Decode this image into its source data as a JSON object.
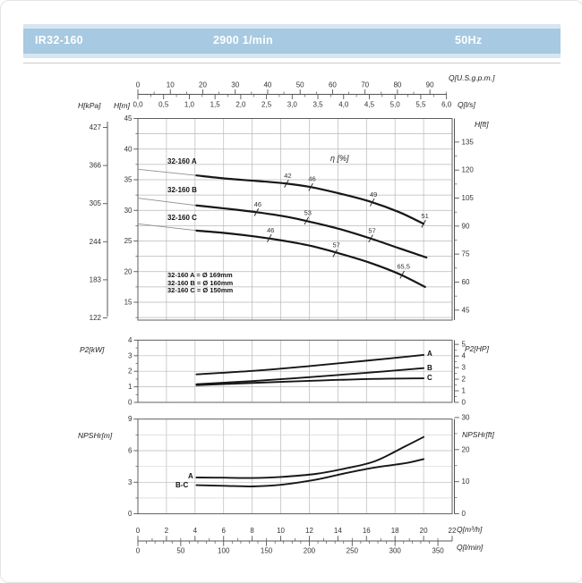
{
  "header": {
    "model": "IR32-160",
    "speed": "2900 1/min",
    "frequency": "50Hz"
  },
  "axis_titles": {
    "kpa": "H[kPa]",
    "hm": "H[m]",
    "gpm": "Q[U.S.g.p.m.]",
    "ls": "Q[l/s]",
    "hft": "H[ft]",
    "p2kw": "P2[kW]",
    "p2hp": "P2[HP]",
    "npshm": "NPSHr[m]",
    "npshft": "NPSHr[ft]",
    "qm3h": "Q[m³/h]",
    "qlmin": "Q[l/min]"
  },
  "axes": {
    "gpm_ticks": [
      0,
      10,
      20,
      30,
      40,
      50,
      60,
      70,
      80,
      90
    ],
    "ls_ticks": [
      {
        "v": 0,
        "label": "0,0"
      },
      {
        "v": 0.5,
        "label": "0,5"
      },
      {
        "v": 1,
        "label": "1,0"
      },
      {
        "v": 1.5,
        "label": "1,5"
      },
      {
        "v": 2,
        "label": "2,0"
      },
      {
        "v": 2.5,
        "label": "2,5"
      },
      {
        "v": 3,
        "label": "3,0"
      },
      {
        "v": 3.5,
        "label": "3,5"
      },
      {
        "v": 4,
        "label": "4,0"
      },
      {
        "v": 4.5,
        "label": "4,5"
      },
      {
        "v": 5,
        "label": "5,0"
      },
      {
        "v": 5.5,
        "label": "5,5"
      },
      {
        "v": 6,
        "label": "6,0"
      }
    ],
    "kpa_ticks": [
      427,
      366,
      305,
      244,
      183,
      122
    ],
    "hm_ticks": [
      45,
      40,
      35,
      30,
      25,
      20,
      15
    ],
    "hft_ticks": [
      135,
      120,
      105,
      90,
      75,
      60,
      45
    ],
    "p2kw_ticks": [
      0,
      1,
      2,
      3,
      4
    ],
    "p2hp_ticks": [
      0,
      1,
      2,
      3,
      4,
      5
    ],
    "npshm_ticks": [
      0,
      3,
      6,
      9
    ],
    "npshft_ticks": [
      0,
      10,
      20,
      30
    ],
    "m3h_ticks": [
      0,
      2,
      4,
      6,
      8,
      10,
      12,
      14,
      16,
      18,
      20,
      22
    ],
    "lmin_ticks": [
      0,
      50,
      100,
      150,
      200,
      250,
      300,
      350
    ]
  },
  "labels": {
    "eta": "η [%]",
    "curve_a": "32-160 A",
    "curve_b": "32-160 B",
    "curve_c": "32-160 C",
    "legend": [
      "32-160 A = Ø 169mm",
      "32-160 B = Ø 160mm",
      "32-160 C = Ø 150mm"
    ],
    "p2": [
      "A",
      "B",
      "C"
    ],
    "npsh": [
      "A",
      "B-C"
    ]
  },
  "chart_data": [
    {
      "type": "line",
      "id": "head-capacity",
      "title": "Head vs flow",
      "x_unit": "m³/h",
      "x_range": [
        0,
        22
      ],
      "y_unit": "m",
      "y_range": [
        12,
        45
      ],
      "grid": "2 m³/h × 2.5 m",
      "series": [
        {
          "name": "32-160 A",
          "impeller": "Ø 169mm",
          "lead_in": [
            [
              0,
              36.7
            ],
            [
              4.1,
              35.7
            ]
          ],
          "points": [
            [
              4.1,
              35.7
            ],
            [
              6.1,
              35.2
            ],
            [
              8.3,
              34.8
            ],
            [
              10.3,
              34.4
            ],
            [
              12.1,
              33.8
            ],
            [
              14.2,
              32.7
            ],
            [
              16.3,
              31.4
            ],
            [
              18.3,
              29.7
            ],
            [
              20,
              27.8
            ]
          ],
          "efficiency_marks": [
            {
              "q": 10.4,
              "h": 34.35,
              "label": "42"
            },
            {
              "q": 12.1,
              "h": 33.8,
              "label": "46"
            },
            {
              "q": 16.4,
              "h": 31.3,
              "label": "49"
            },
            {
              "q": 20,
              "h": 27.8,
              "label": "51"
            }
          ]
        },
        {
          "name": "32-160 B",
          "impeller": "Ø 160mm",
          "lead_in": [
            [
              0,
              32.0
            ],
            [
              4.1,
              30.8
            ]
          ],
          "points": [
            [
              4.1,
              30.8
            ],
            [
              6.1,
              30.3
            ],
            [
              8.3,
              29.7
            ],
            [
              10.3,
              29.0
            ],
            [
              12.1,
              28.1
            ],
            [
              14.2,
              26.9
            ],
            [
              16.3,
              25.4
            ],
            [
              18.3,
              23.8
            ],
            [
              20.2,
              22.3
            ]
          ],
          "efficiency_marks": [
            {
              "q": 8.3,
              "h": 29.7,
              "label": "46"
            },
            {
              "q": 11.8,
              "h": 28.3,
              "label": "53"
            },
            {
              "q": 16.3,
              "h": 25.4,
              "label": "57"
            }
          ]
        },
        {
          "name": "32-160 C",
          "impeller": "Ø 150mm",
          "lead_in": [
            [
              0,
              27.8
            ],
            [
              4.1,
              26.7
            ]
          ],
          "points": [
            [
              4.1,
              26.7
            ],
            [
              6.1,
              26.3
            ],
            [
              8.3,
              25.7
            ],
            [
              10.3,
              25.0
            ],
            [
              12.1,
              24.2
            ],
            [
              14.2,
              22.9
            ],
            [
              16.3,
              21.4
            ],
            [
              18.3,
              19.6
            ],
            [
              20.1,
              17.5
            ]
          ],
          "efficiency_marks": [
            {
              "q": 9.2,
              "h": 25.45,
              "label": "46"
            },
            {
              "q": 13.8,
              "h": 23.0,
              "label": "57"
            },
            {
              "q": 18.5,
              "h": 19.5,
              "label": "65,5"
            }
          ]
        }
      ]
    },
    {
      "type": "line",
      "id": "power",
      "title": "Shaft power",
      "x_unit": "m³/h",
      "x_range": [
        0,
        22
      ],
      "y_unit": "kW",
      "y_range": [
        0,
        4
      ],
      "series": [
        {
          "name": "A",
          "points": [
            [
              4.1,
              1.8
            ],
            [
              8,
              2.02
            ],
            [
              12,
              2.33
            ],
            [
              16,
              2.68
            ],
            [
              20,
              3.05
            ]
          ]
        },
        {
          "name": "B",
          "points": [
            [
              4.1,
              1.17
            ],
            [
              8,
              1.37
            ],
            [
              12,
              1.62
            ],
            [
              16,
              1.9
            ],
            [
              20,
              2.2
            ]
          ]
        },
        {
          "name": "C",
          "points": [
            [
              4.1,
              1.1
            ],
            [
              8,
              1.25
            ],
            [
              12,
              1.38
            ],
            [
              16,
              1.5
            ],
            [
              20,
              1.55
            ]
          ]
        }
      ]
    },
    {
      "type": "line",
      "id": "npshr",
      "title": "NPSH required",
      "x_unit": "m³/h",
      "x_range": [
        0,
        22
      ],
      "y_unit": "m",
      "y_range": [
        0,
        9
      ],
      "series": [
        {
          "name": "A",
          "points": [
            [
              4.1,
              3.45
            ],
            [
              6,
              3.43
            ],
            [
              8,
              3.4
            ],
            [
              10,
              3.5
            ],
            [
              12.5,
              3.8
            ],
            [
              14.5,
              4.3
            ],
            [
              16.6,
              5.0
            ],
            [
              18.7,
              6.4
            ],
            [
              20,
              7.3
            ]
          ]
        },
        {
          "name": "B-C",
          "points": [
            [
              4.1,
              2.72
            ],
            [
              6,
              2.66
            ],
            [
              8,
              2.6
            ],
            [
              10,
              2.75
            ],
            [
              12.5,
              3.25
            ],
            [
              14.5,
              3.85
            ],
            [
              16.6,
              4.4
            ],
            [
              18.7,
              4.8
            ],
            [
              20,
              5.2
            ]
          ]
        }
      ]
    }
  ]
}
